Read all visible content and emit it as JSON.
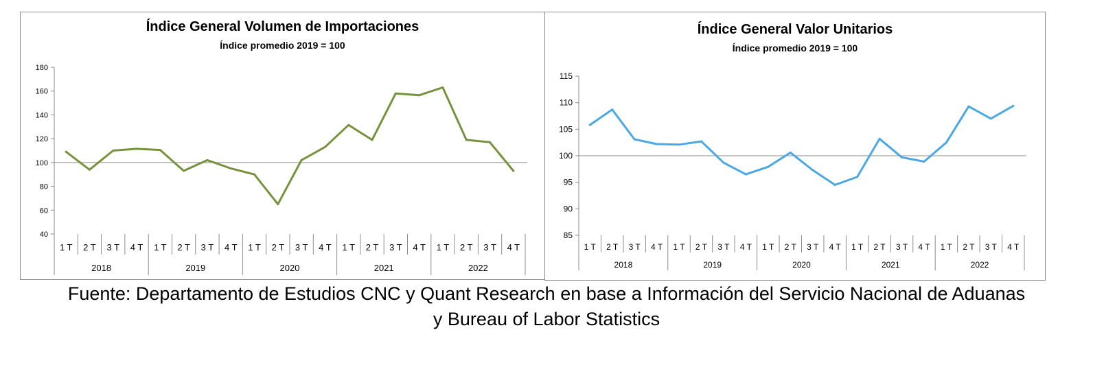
{
  "quarter_labels": [
    "1 T",
    "2 T",
    "3 T",
    "4 T"
  ],
  "years": [
    "2018",
    "2019",
    "2020",
    "2021",
    "2022"
  ],
  "chart_data": [
    {
      "type": "line",
      "title": "Índice General Volumen de Importaciones",
      "subtitle": "Índice promedio 2019 = 100",
      "ylim": [
        40,
        180
      ],
      "yticks": [
        40,
        60,
        80,
        100,
        120,
        140,
        160,
        180
      ],
      "baseline": 100,
      "color": "#76923c",
      "values": [
        109,
        94,
        110,
        111.5,
        110.5,
        93,
        102,
        95,
        90,
        65,
        102,
        113,
        131.5,
        119,
        158,
        156.5,
        163,
        119,
        117,
        93
      ]
    },
    {
      "type": "line",
      "title": "Índice General Valor Unitarios",
      "subtitle": "Índice promedio 2019 = 100",
      "ylim": [
        85,
        115
      ],
      "yticks": [
        85,
        90,
        95,
        100,
        105,
        110,
        115
      ],
      "baseline": 100,
      "color": "#4aa8e4",
      "values": [
        105.8,
        108.7,
        103.1,
        102.2,
        102.1,
        102.7,
        98.7,
        96.5,
        97.9,
        100.6,
        97.3,
        94.5,
        96.0,
        103.2,
        99.7,
        98.9,
        102.5,
        109.3,
        107.0,
        109.4
      ]
    }
  ],
  "footer": {
    "line1": "Fuente: Departamento de Estudios CNC y Quant Research en base a Información del Servicio Nacional de Aduanas",
    "line2": "y Bureau of Labor Statistics"
  }
}
